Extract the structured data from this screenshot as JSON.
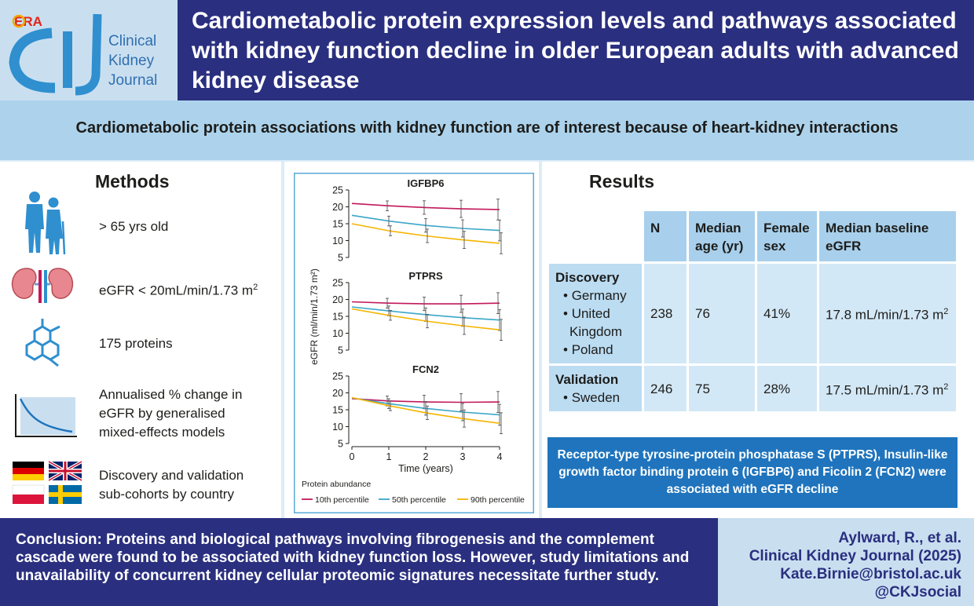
{
  "header": {
    "journal_logo_text": [
      "Clinical",
      "Kidney",
      "Journal"
    ],
    "society_logo_text": "ERA",
    "title": "Cardiometabolic protein expression levels and pathways associated with kidney function decline in older European adults with advanced kidney disease"
  },
  "subtitle": "Cardiometabolic protein associations with kidney function are of interest because of heart-kidney interactions",
  "methods": {
    "title": "Methods",
    "items": [
      {
        "icon": "elderly-couple-icon",
        "text": "> 65 yrs old"
      },
      {
        "icon": "kidneys-icon",
        "text": "eGFR < 20mL/min/1.73 m",
        "sup": "2"
      },
      {
        "icon": "hexagon-molecule-icon",
        "text": "175 proteins"
      },
      {
        "icon": "decline-curve-icon",
        "text": "Annualised % change in eGFR by generalised mixed-effects models"
      },
      {
        "icon": "country-flags-icon",
        "text": "Discovery and validation sub-cohorts by country"
      }
    ]
  },
  "chart_data": {
    "type": "line",
    "ylabel": "eGFR (ml/min/1.73 m²)",
    "xlabel": "Time (years)",
    "x": [
      0,
      1,
      2,
      3,
      4
    ],
    "ylim": [
      5,
      25
    ],
    "yticks": [
      5,
      10,
      15,
      20,
      25
    ],
    "legend_title": "Protein abundance",
    "legend_position": "bottom",
    "series_names": [
      "10th percentile",
      "50th percentile",
      "90th percentile"
    ],
    "series_colors": [
      "#c2185b",
      "#3aa6c8",
      "#f5b400"
    ],
    "panels": [
      {
        "title": "IGFBP6",
        "series": [
          {
            "name": "10th percentile",
            "values": [
              21.0,
              20.3,
              19.8,
              19.4,
              19.2
            ]
          },
          {
            "name": "50th percentile",
            "values": [
              17.5,
              15.8,
              14.5,
              13.6,
              13.0
            ]
          },
          {
            "name": "90th percentile",
            "values": [
              15.0,
              12.9,
              11.4,
              10.2,
              9.2
            ]
          }
        ]
      },
      {
        "title": "PTPRS",
        "series": [
          {
            "name": "10th percentile",
            "values": [
              19.3,
              18.9,
              18.7,
              18.7,
              18.9
            ]
          },
          {
            "name": "50th percentile",
            "values": [
              17.8,
              16.6,
              15.5,
              14.6,
              13.9
            ]
          },
          {
            "name": "90th percentile",
            "values": [
              17.2,
              15.3,
              13.6,
              12.2,
              11.0
            ]
          }
        ]
      },
      {
        "title": "FCN2",
        "series": [
          {
            "name": "10th percentile",
            "values": [
              18.3,
              17.6,
              17.3,
              17.2,
              17.3
            ]
          },
          {
            "name": "50th percentile",
            "values": [
              18.5,
              16.8,
              15.4,
              14.3,
              13.5
            ]
          },
          {
            "name": "90th percentile",
            "values": [
              18.6,
              16.2,
              14.1,
              12.4,
              11.0
            ]
          }
        ]
      }
    ]
  },
  "results": {
    "title": "Results",
    "headers": [
      "N",
      "Median age (yr)",
      "Female sex",
      "Median baseline eGFR"
    ],
    "rows": [
      {
        "cohort": "Discovery",
        "countries": [
          "Germany",
          "United Kingdom",
          "Poland"
        ],
        "n": "238",
        "age": "76",
        "female": "41%",
        "egfr": "17.8 mL/min/1.73 m",
        "egfr_sup": "2"
      },
      {
        "cohort": "Validation",
        "countries": [
          "Sweden"
        ],
        "n": "246",
        "age": "75",
        "female": "28%",
        "egfr": "17.5 mL/min/1.73 m",
        "egfr_sup": "2"
      }
    ],
    "finding": "Receptor-type tyrosine-protein phosphatase S (PTPRS), Insulin-like growth factor binding protein 6 (IGFBP6) and Ficolin 2 (FCN2) were associated with eGFR decline"
  },
  "conclusion": "Conclusion: Proteins and biological pathways involving fibrogenesis and the complement cascade were found to be associated with kidney function loss. However, study limitations and unavailability of concurrent kidney cellular proteomic signatures necessitate further study.",
  "citation": {
    "authors": "Aylward, R., et al.",
    "journal": "Clinical Kidney Journal (2025)",
    "email": "Kate.Birnie@bristol.ac.uk",
    "social": "@CKJsocial"
  },
  "colors": {
    "navy": "#2a2f7f",
    "light_blue": "#add3ec",
    "accent_blue": "#1f74bd",
    "icon_blue": "#2f8fcf"
  }
}
